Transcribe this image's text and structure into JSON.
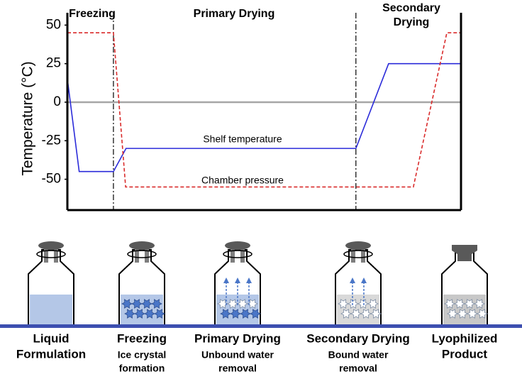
{
  "chart_data": {
    "type": "line",
    "phase_labels": [
      [
        "Freezing"
      ],
      [
        "Primary Drying"
      ],
      [
        "Secondary",
        "Drying"
      ]
    ],
    "ylabel": "Temperature (°C)",
    "xlim": [
      0,
      100
    ],
    "ylim": [
      -70,
      58
    ],
    "yticks": [
      50,
      25,
      0,
      -25,
      -50
    ],
    "zero_line": true,
    "phase_boundaries": [
      11.7,
      73.3
    ],
    "series": [
      {
        "name": "Shelf temperature",
        "color": "#2b2bd9",
        "dash": false,
        "x": [
          0,
          3,
          11.7,
          14.9,
          73.3,
          81.6,
          100
        ],
        "values": [
          15,
          -45,
          -45,
          -30,
          -30,
          25,
          25
        ]
      },
      {
        "name": "Chamber pressure",
        "color": "#d92b2b",
        "dash": true,
        "x": [
          0,
          11.7,
          14.8,
          87.9,
          96.4,
          100
        ],
        "values": [
          45,
          45,
          -55,
          -55,
          45,
          45
        ]
      }
    ]
  },
  "stages": [
    {
      "title": [
        "Liquid",
        "Formulation"
      ],
      "note": []
    },
    {
      "title": [
        "Freezing"
      ],
      "note": [
        "Ice crystal",
        "formation"
      ]
    },
    {
      "title": [
        "Primary Drying"
      ],
      "note": [
        "Unbound water",
        "removal"
      ]
    },
    {
      "title": [
        "Secondary Drying"
      ],
      "note": [
        "Bound water",
        "removal"
      ]
    },
    {
      "title": [
        "Lyophilized",
        "Product"
      ],
      "note": []
    }
  ]
}
